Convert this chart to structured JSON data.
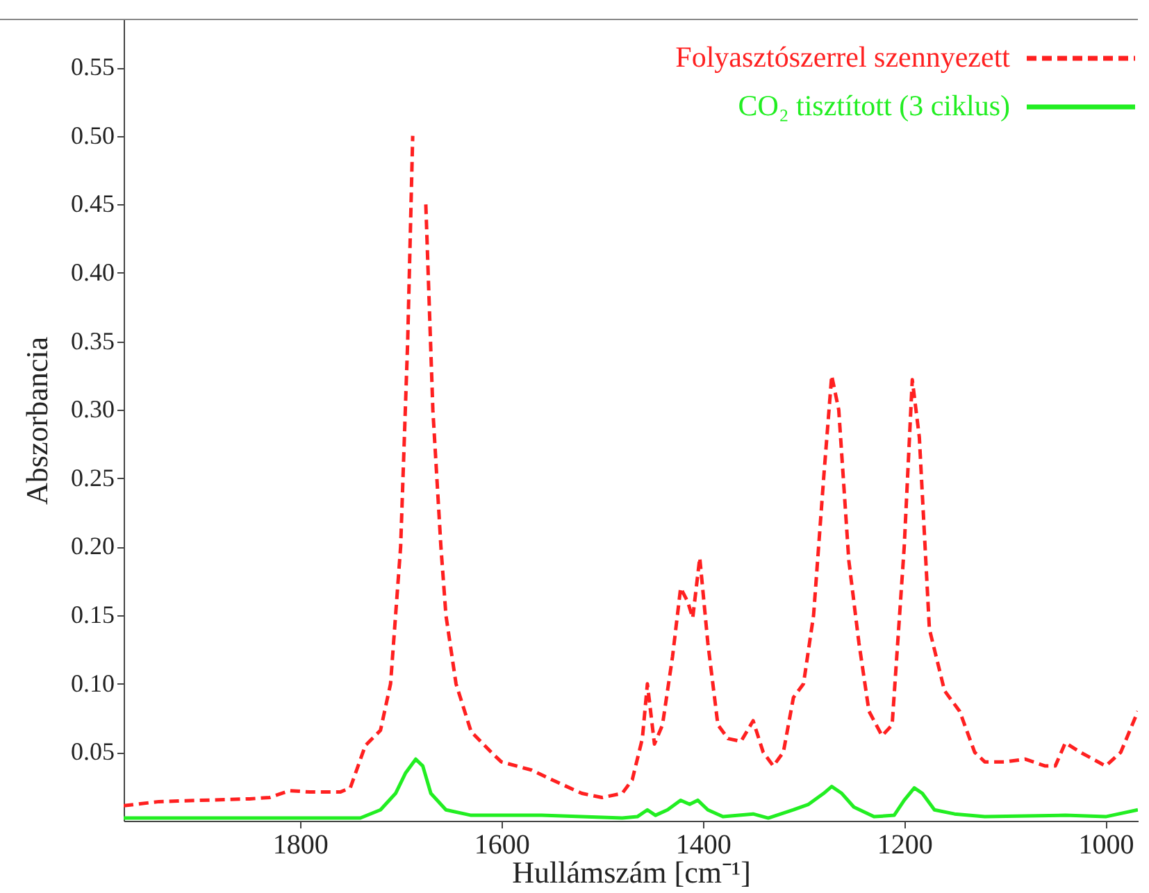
{
  "chart_data": {
    "type": "line",
    "xlabel": "Hullámszám [cm⁻¹]",
    "ylabel": "Abszorbancia",
    "xlim": [
      1975,
      968
    ],
    "ylim": [
      0,
      0.585
    ],
    "xticks": [
      1800,
      1600,
      1400,
      1200,
      1000
    ],
    "yticks": [
      0.05,
      {
        "value": 0.1,
        "label": "0.10"
      },
      0.15,
      {
        "value": 0.2,
        "label": "0.20"
      },
      0.25,
      {
        "value": 0.3,
        "label": "0.30"
      },
      0.35,
      {
        "value": 0.4,
        "label": "0.40"
      },
      0.45,
      {
        "value": 0.5,
        "label": "0.50"
      },
      0.55
    ],
    "grid": false,
    "legend": "top right",
    "marker": "none",
    "series": [
      {
        "name": "Folyasztószerrel szennyezett",
        "color": "#ff2020",
        "line_style": "dashed",
        "x": [
          1975,
          1940,
          1850,
          1830,
          1810,
          1790,
          1760,
          1750,
          1735,
          1720,
          1710,
          1700,
          1693,
          1688,
          1685,
          1680,
          1675,
          1668,
          1660,
          1655,
          1645,
          1630,
          1610,
          1600,
          1570,
          1550,
          1520,
          1500,
          1480,
          1470,
          1460,
          1455,
          1448,
          1440,
          1430,
          1422,
          1415,
          1410,
          1403,
          1395,
          1385,
          1375,
          1362,
          1350,
          1340,
          1330,
          1320,
          1310,
          1300,
          1290,
          1280,
          1272,
          1265,
          1255,
          1245,
          1235,
          1222,
          1212,
          1200,
          1192,
          1185,
          1175,
          1160,
          1145,
          1130,
          1120,
          1100,
          1080,
          1060,
          1050,
          1040,
          1025,
          1000,
          985,
          968
        ],
        "values": [
          0.011,
          0.014,
          0.016,
          0.017,
          0.022,
          0.021,
          0.021,
          0.024,
          0.055,
          0.066,
          0.1,
          0.2,
          0.35,
          0.5,
          null,
          null,
          0.45,
          0.3,
          0.2,
          0.15,
          0.1,
          0.065,
          0.05,
          0.043,
          0.037,
          0.03,
          0.02,
          0.017,
          0.02,
          0.03,
          0.06,
          0.1,
          0.056,
          0.07,
          0.12,
          0.17,
          0.16,
          0.148,
          0.192,
          0.13,
          0.07,
          0.06,
          0.058,
          0.073,
          0.05,
          0.04,
          0.05,
          0.09,
          0.1,
          0.15,
          0.25,
          0.325,
          0.3,
          0.19,
          0.13,
          0.08,
          0.062,
          0.07,
          0.2,
          0.322,
          0.28,
          0.14,
          0.095,
          0.08,
          0.05,
          0.043,
          0.043,
          0.045,
          0.04,
          0.04,
          0.057,
          0.05,
          0.04,
          0.05,
          0.08
        ]
      },
      {
        "name": "CO₂ tisztított (3 ciklus)",
        "color": "#22ee22",
        "line_style": "solid",
        "x": [
          1975,
          1800,
          1740,
          1720,
          1705,
          1695,
          1685,
          1678,
          1670,
          1655,
          1630,
          1560,
          1480,
          1465,
          1455,
          1447,
          1435,
          1422,
          1413,
          1405,
          1395,
          1380,
          1350,
          1335,
          1310,
          1295,
          1280,
          1272,
          1262,
          1250,
          1230,
          1210,
          1200,
          1190,
          1182,
          1170,
          1150,
          1120,
          1040,
          1000,
          968
        ],
        "values": [
          0.002,
          0.002,
          0.002,
          0.008,
          0.02,
          0.035,
          0.045,
          0.04,
          0.02,
          0.008,
          0.004,
          0.004,
          0.002,
          0.003,
          0.008,
          0.004,
          0.008,
          0.015,
          0.012,
          0.015,
          0.008,
          0.003,
          0.005,
          0.002,
          0.008,
          0.012,
          0.02,
          0.025,
          0.02,
          0.01,
          0.003,
          0.004,
          0.015,
          0.024,
          0.02,
          0.008,
          0.005,
          0.003,
          0.004,
          0.003,
          0.008
        ]
      }
    ]
  }
}
